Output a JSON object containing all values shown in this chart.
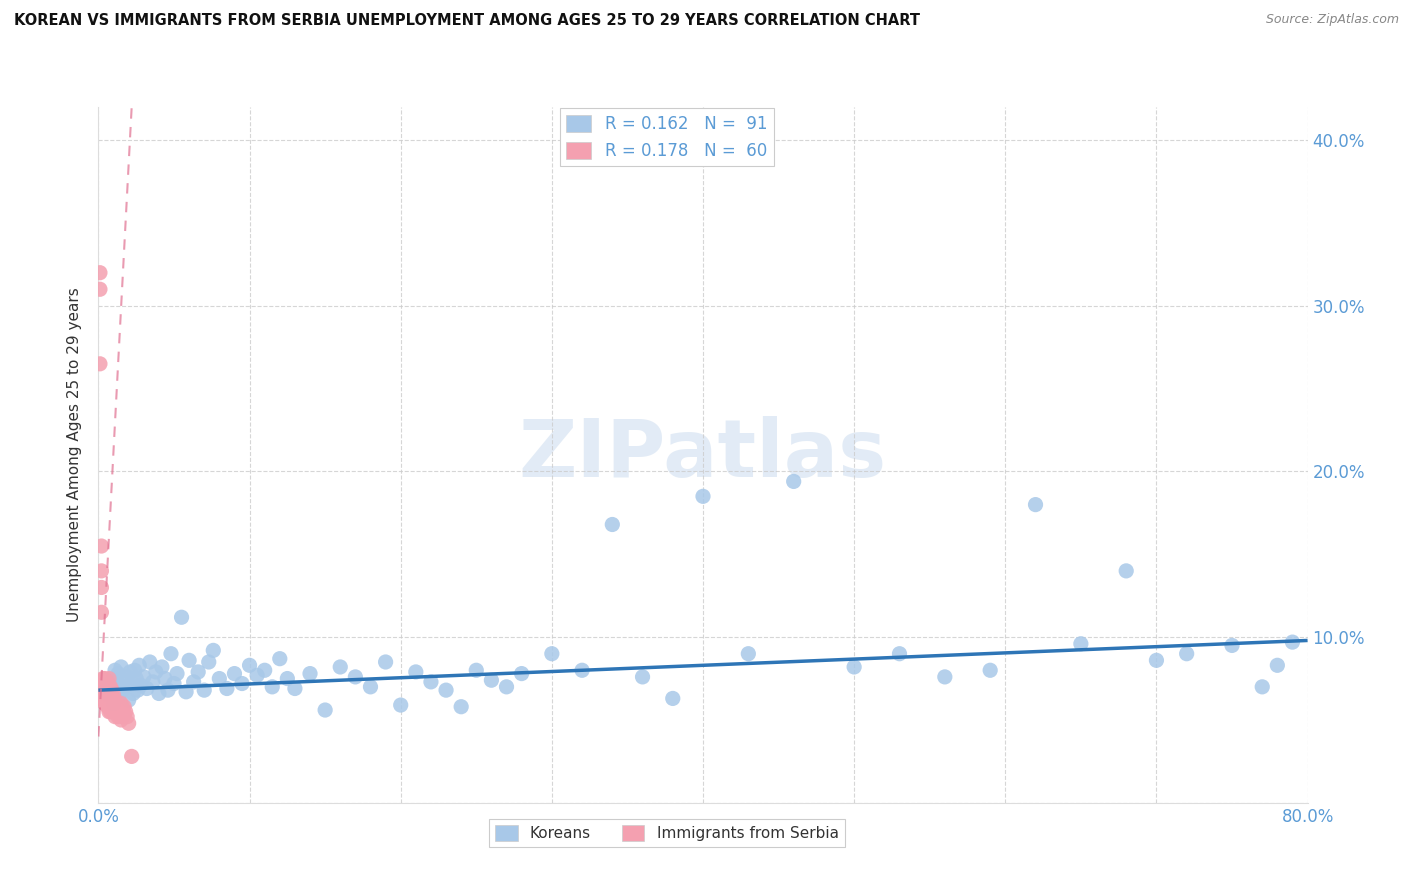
{
  "title": "KOREAN VS IMMIGRANTS FROM SERBIA UNEMPLOYMENT AMONG AGES 25 TO 29 YEARS CORRELATION CHART",
  "source": "Source: ZipAtlas.com",
  "ylabel": "Unemployment Among Ages 25 to 29 years",
  "xlim": [
    0,
    0.8
  ],
  "ylim": [
    0,
    0.42
  ],
  "yticks": [
    0.0,
    0.1,
    0.2,
    0.3,
    0.4
  ],
  "yticklabels": [
    "",
    "10.0%",
    "20.0%",
    "30.0%",
    "40.0%"
  ],
  "xtick_left": "0.0%",
  "xtick_right": "80.0%",
  "koreans_R": 0.162,
  "koreans_N": 91,
  "serbia_R": 0.178,
  "serbia_N": 60,
  "korean_color": "#a8c8e8",
  "korean_line_color": "#2e75b6",
  "serbia_color": "#f4a0b0",
  "serbia_line_color": "#e07090",
  "watermark_text": "ZIPatlas",
  "watermark_color": "#d0dff0",
  "legend_label1": "Koreans",
  "legend_label2": "Immigrants from Serbia",
  "korean_line_x0": 0.0,
  "korean_line_x1": 0.8,
  "korean_line_y0": 0.068,
  "korean_line_y1": 0.098,
  "serbia_line_x0": 0.0,
  "serbia_line_x1": 0.022,
  "serbia_line_y0": 0.04,
  "serbia_line_y1": 0.42,
  "koreans_x": [
    0.005,
    0.007,
    0.008,
    0.009,
    0.01,
    0.01,
    0.011,
    0.012,
    0.013,
    0.014,
    0.015,
    0.016,
    0.017,
    0.018,
    0.019,
    0.02,
    0.021,
    0.022,
    0.023,
    0.024,
    0.025,
    0.026,
    0.027,
    0.028,
    0.03,
    0.032,
    0.034,
    0.036,
    0.038,
    0.04,
    0.042,
    0.044,
    0.046,
    0.048,
    0.05,
    0.052,
    0.055,
    0.058,
    0.06,
    0.063,
    0.066,
    0.07,
    0.073,
    0.076,
    0.08,
    0.085,
    0.09,
    0.095,
    0.1,
    0.105,
    0.11,
    0.115,
    0.12,
    0.125,
    0.13,
    0.14,
    0.15,
    0.16,
    0.17,
    0.18,
    0.19,
    0.2,
    0.21,
    0.22,
    0.23,
    0.24,
    0.25,
    0.26,
    0.27,
    0.28,
    0.3,
    0.32,
    0.34,
    0.36,
    0.38,
    0.4,
    0.43,
    0.46,
    0.5,
    0.53,
    0.56,
    0.59,
    0.62,
    0.65,
    0.68,
    0.7,
    0.72,
    0.75,
    0.77,
    0.78,
    0.79
  ],
  "koreans_y": [
    0.07,
    0.065,
    0.072,
    0.068,
    0.075,
    0.06,
    0.08,
    0.073,
    0.078,
    0.065,
    0.082,
    0.068,
    0.074,
    0.07,
    0.076,
    0.062,
    0.079,
    0.072,
    0.066,
    0.08,
    0.075,
    0.068,
    0.083,
    0.071,
    0.076,
    0.069,
    0.085,
    0.073,
    0.079,
    0.066,
    0.082,
    0.075,
    0.068,
    0.09,
    0.072,
    0.078,
    0.112,
    0.067,
    0.086,
    0.073,
    0.079,
    0.068,
    0.085,
    0.092,
    0.075,
    0.069,
    0.078,
    0.072,
    0.083,
    0.077,
    0.08,
    0.07,
    0.087,
    0.075,
    0.069,
    0.078,
    0.056,
    0.082,
    0.076,
    0.07,
    0.085,
    0.059,
    0.079,
    0.073,
    0.068,
    0.058,
    0.08,
    0.074,
    0.07,
    0.078,
    0.09,
    0.08,
    0.168,
    0.076,
    0.063,
    0.185,
    0.09,
    0.194,
    0.082,
    0.09,
    0.076,
    0.08,
    0.18,
    0.096,
    0.14,
    0.086,
    0.09,
    0.095,
    0.07,
    0.083,
    0.097
  ],
  "serbia_x": [
    0.001,
    0.001,
    0.001,
    0.002,
    0.002,
    0.002,
    0.002,
    0.003,
    0.003,
    0.003,
    0.003,
    0.003,
    0.004,
    0.004,
    0.004,
    0.004,
    0.005,
    0.005,
    0.005,
    0.005,
    0.005,
    0.006,
    0.006,
    0.006,
    0.006,
    0.007,
    0.007,
    0.007,
    0.007,
    0.007,
    0.008,
    0.008,
    0.008,
    0.008,
    0.009,
    0.009,
    0.009,
    0.01,
    0.01,
    0.01,
    0.011,
    0.011,
    0.011,
    0.012,
    0.012,
    0.013,
    0.013,
    0.014,
    0.014,
    0.015,
    0.015,
    0.015,
    0.016,
    0.016,
    0.017,
    0.017,
    0.018,
    0.019,
    0.02,
    0.022
  ],
  "serbia_y": [
    0.32,
    0.31,
    0.265,
    0.155,
    0.14,
    0.13,
    0.115,
    0.075,
    0.07,
    0.068,
    0.065,
    0.062,
    0.075,
    0.07,
    0.065,
    0.06,
    0.068,
    0.072,
    0.065,
    0.07,
    0.06,
    0.073,
    0.067,
    0.062,
    0.058,
    0.075,
    0.068,
    0.063,
    0.058,
    0.055,
    0.07,
    0.065,
    0.06,
    0.055,
    0.068,
    0.063,
    0.058,
    0.065,
    0.06,
    0.055,
    0.062,
    0.057,
    0.052,
    0.06,
    0.055,
    0.057,
    0.052,
    0.058,
    0.053,
    0.06,
    0.055,
    0.05,
    0.057,
    0.052,
    0.058,
    0.053,
    0.055,
    0.052,
    0.048,
    0.028
  ]
}
